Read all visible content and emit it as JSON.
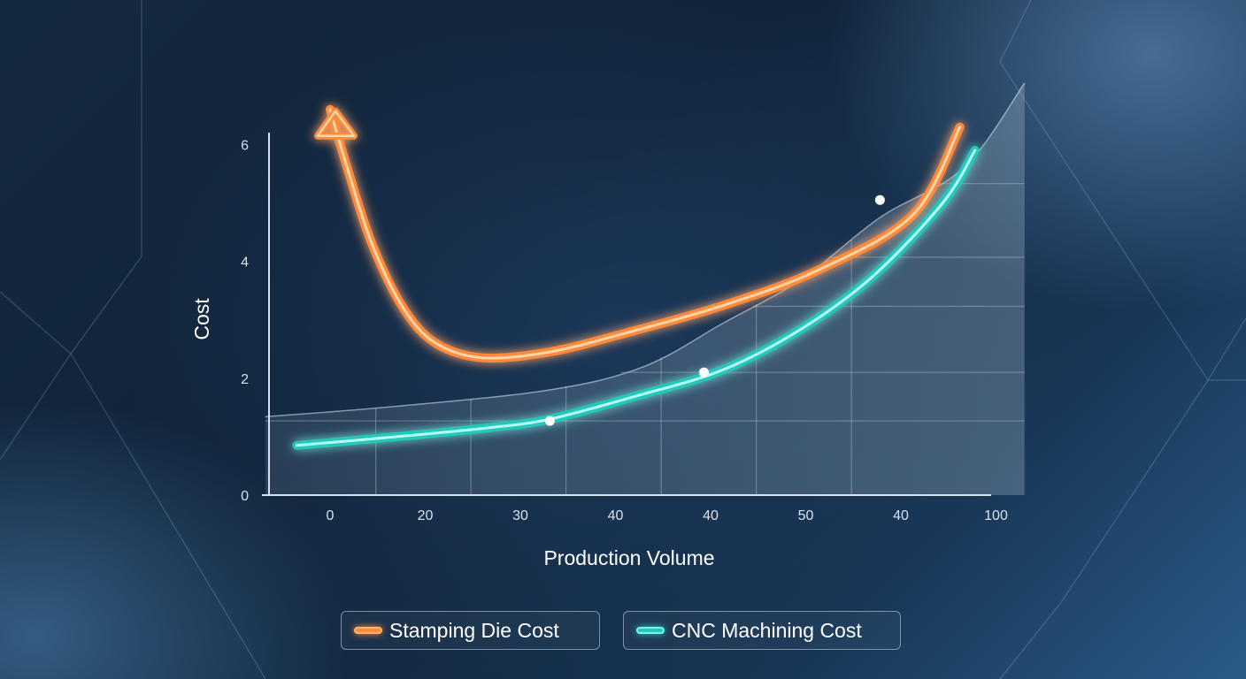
{
  "chart_data": {
    "type": "line",
    "title": "",
    "xlabel": "Production Volume",
    "ylabel": "Cost",
    "x_tick_labels": [
      "0",
      "20",
      "30",
      "40",
      "40",
      "50",
      "40",
      "100"
    ],
    "y_tick_labels": [
      "0",
      "2",
      "4",
      "6"
    ],
    "ylim": [
      0,
      6.6
    ],
    "grid": true,
    "legend_position": "bottom",
    "series": [
      {
        "name": "Stamping Die Cost",
        "color": "#ff8a3a",
        "style": "glowing line with upward arrow at start",
        "x": [
          0.0,
          0.18,
          0.44,
          0.77,
          1.11,
          1.6,
          2.31,
          3.17,
          4.14,
          5.13,
          6.13,
          6.62
        ],
        "y": [
          6.6,
          5.6,
          4.3,
          3.2,
          2.6,
          2.35,
          2.45,
          2.8,
          3.25,
          3.85,
          4.8,
          6.3
        ]
      },
      {
        "name": "CNC Machining Cost",
        "color": "#22c9bb",
        "style": "glowing line",
        "x": [
          -0.35,
          0.7,
          1.65,
          2.31,
          3.23,
          4.14,
          4.96,
          5.71,
          6.44,
          6.78
        ],
        "y": [
          0.85,
          1.0,
          1.15,
          1.3,
          1.7,
          2.15,
          2.85,
          3.75,
          5.0,
          5.9
        ]
      }
    ],
    "highlight_points": [
      {
        "x": 2.31,
        "y": 1.27
      },
      {
        "x": 3.93,
        "y": 2.1
      },
      {
        "x": 5.78,
        "y": 5.05
      }
    ],
    "shaded_area": {
      "x": [
        -0.68,
        0.7,
        2.31,
        3.3,
        4.14,
        4.96,
        5.78,
        6.66,
        7.3
      ],
      "y": [
        1.34,
        1.52,
        1.8,
        2.2,
        2.95,
        3.7,
        4.75,
        5.6,
        7.05
      ]
    }
  }
}
